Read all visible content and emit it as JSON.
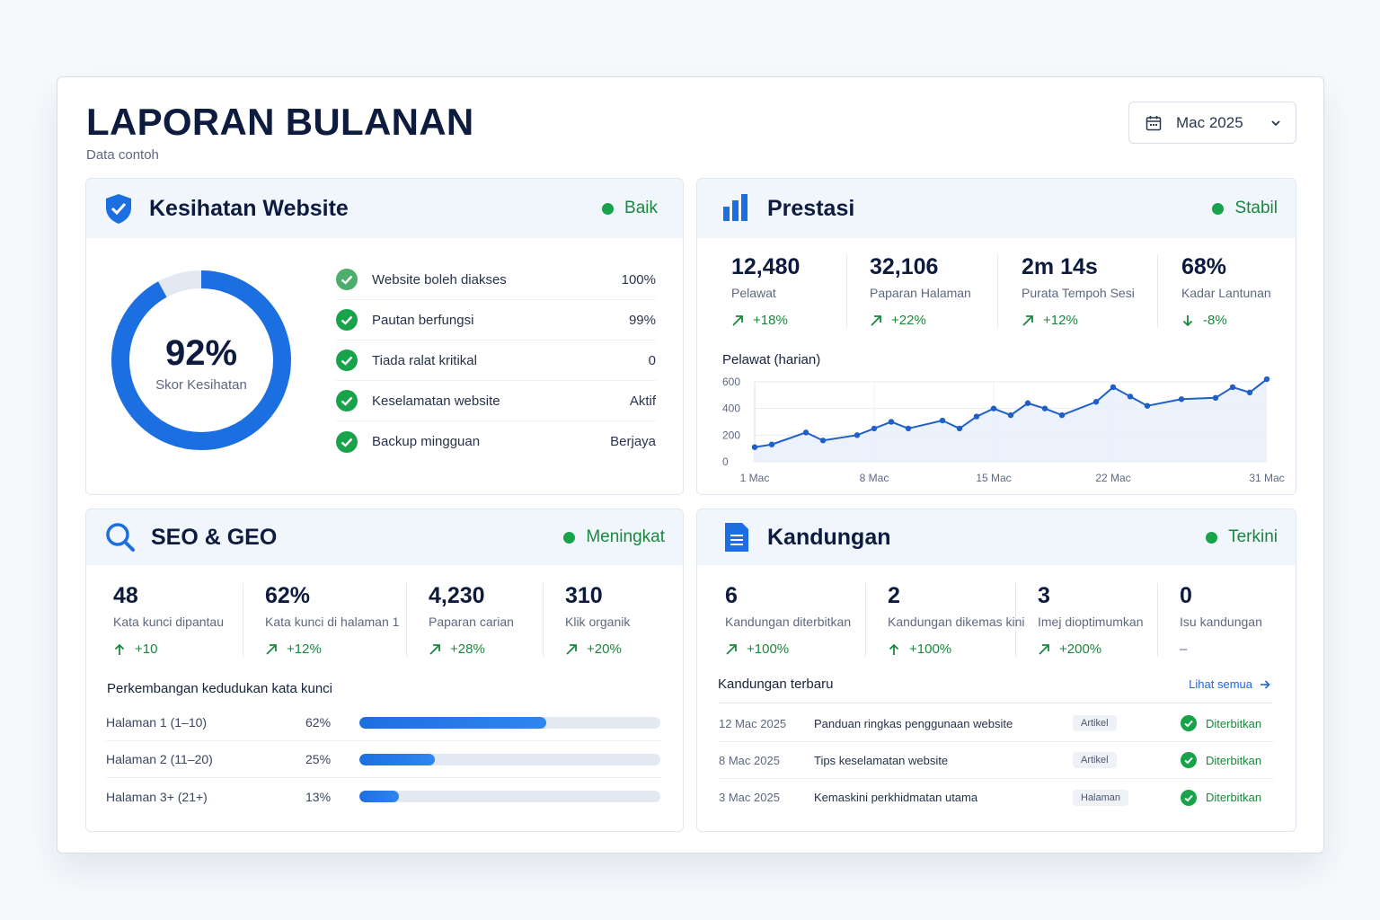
{
  "header": {
    "title": "LAPORAN BULANAN",
    "subtitle": "Data contoh",
    "month": "Mac 2025"
  },
  "health": {
    "title": "Kesihatan Website",
    "status": "Baik",
    "score_value": "92%",
    "score_fraction": 0.92,
    "score_label": "Skor Kesihatan",
    "checks": [
      {
        "label": "Website boleh diakses",
        "value": "100%"
      },
      {
        "label": "Pautan berfungsi",
        "value": "99%"
      },
      {
        "label": "Tiada ralat kritikal",
        "value": "0"
      },
      {
        "label": "Keselamatan website",
        "value": "Aktif"
      },
      {
        "label": "Backup mingguan",
        "value": "Berjaya"
      }
    ]
  },
  "performance": {
    "title": "Prestasi",
    "status": "Stabil",
    "metrics": [
      {
        "value": "12,480",
        "label": "Pelawat",
        "delta": "+18%"
      },
      {
        "value": "32,106",
        "label": "Paparan Halaman",
        "delta": "+22%"
      },
      {
        "value": "2m 14s",
        "label": "Purata Tempoh Sesi",
        "delta": "+12%"
      },
      {
        "value": "68%",
        "label": "Kadar Lantunan",
        "delta": "-8%"
      }
    ],
    "chart_label": "Pelawat (harian)"
  },
  "chart_data": {
    "type": "area",
    "title": "Pelawat (harian)",
    "x_ticks": [
      "1 Mac",
      "8 Mac",
      "15 Mac",
      "22 Mac",
      "31 Mac"
    ],
    "y_ticks": [
      "600",
      "400",
      "200",
      "0"
    ],
    "ylim": [
      0,
      600
    ],
    "x_range": [
      1,
      31
    ],
    "grid": true,
    "series": [
      {
        "x": [
          1,
          2,
          4,
          5,
          7,
          8,
          9,
          10,
          12,
          13,
          14,
          15,
          16,
          17,
          18,
          19,
          21,
          22,
          23,
          24,
          26,
          28,
          29,
          30,
          31
        ],
        "y": [
          110,
          130,
          220,
          160,
          200,
          250,
          300,
          250,
          310,
          250,
          340,
          400,
          350,
          440,
          400,
          350,
          450,
          560,
          490,
          420,
          470,
          480,
          560,
          520,
          620
        ],
        "color": "#1f5fc7"
      }
    ]
  },
  "seo": {
    "title": "SEO & GEO",
    "status": "Meningkat",
    "metrics": [
      {
        "value": "48",
        "label": "Kata kunci dipantau",
        "delta": "+10"
      },
      {
        "value": "62%",
        "label": "Kata kunci di halaman 1",
        "delta": "+12%"
      },
      {
        "value": "4,230",
        "label": "Paparan carian",
        "delta": "+28%"
      },
      {
        "value": "310",
        "label": "Klik organik",
        "delta": "+20%"
      }
    ],
    "ranking_label": "Perkembangan kedudukan kata kunci",
    "rankings": [
      {
        "name": "Halaman 1 (1–10)",
        "percent": "62%",
        "fraction": 0.62
      },
      {
        "name": "Halaman 2 (11–20)",
        "percent": "25%",
        "fraction": 0.25
      },
      {
        "name": "Halaman 3+ (21+)",
        "percent": "13%",
        "fraction": 0.13
      }
    ]
  },
  "content": {
    "title": "Kandungan",
    "status": "Terkini",
    "metrics": [
      {
        "value": "6",
        "label": "Kandungan diterbitkan",
        "delta": "+100%"
      },
      {
        "value": "2",
        "label": "Kandungan dikemas kini",
        "delta": "+100%"
      },
      {
        "value": "3",
        "label": "Imej dioptimumkan",
        "delta": "+200%"
      },
      {
        "value": "0",
        "label": "Isu kandungan",
        "delta": "–"
      }
    ],
    "recent_label": "Kandungan terbaru",
    "see_all": "Lihat semua",
    "items": [
      {
        "date": "12 Mac 2025",
        "title": "Panduan ringkas penggunaan website",
        "tag": "Artikel",
        "status": "Diterbitkan"
      },
      {
        "date": "8 Mac 2025",
        "title": "Tips keselamatan website",
        "tag": "Artikel",
        "status": "Diterbitkan"
      },
      {
        "date": "3 Mac 2025",
        "title": "Kemaskini perkhidmatan utama",
        "tag": "Halaman",
        "status": "Diterbitkan"
      }
    ]
  },
  "colors": {
    "accent": "#1c6fe0",
    "success": "#18a34a",
    "heading": "#0d1b3e"
  }
}
